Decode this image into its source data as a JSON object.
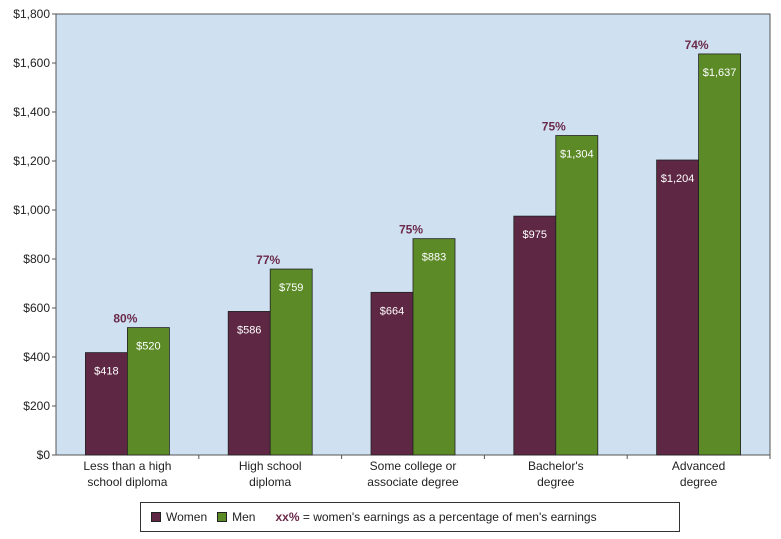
{
  "chart_data": {
    "type": "bar",
    "categories": [
      [
        "Less than a high",
        "school diploma"
      ],
      [
        "High school",
        "diploma"
      ],
      [
        "Some college or",
        "associate degree"
      ],
      [
        "Bachelor's",
        "degree"
      ],
      [
        "Advanced",
        "degree"
      ]
    ],
    "series": [
      {
        "name": "Women",
        "color": "#5e2744",
        "values": [
          418,
          586,
          664,
          975,
          1204
        ],
        "labels": [
          "$418",
          "$586",
          "$664",
          "$975",
          "$1,204"
        ]
      },
      {
        "name": "Men",
        "color": "#5b8a27",
        "values": [
          520,
          759,
          883,
          1304,
          1637
        ],
        "labels": [
          "$520",
          "$759",
          "$883",
          "$1,304",
          "$1,637"
        ]
      }
    ],
    "percent_labels": [
      "80%",
      "77%",
      "75%",
      "75%",
      "74%"
    ],
    "ylim": [
      0,
      1800
    ],
    "yticks": [
      0,
      200,
      400,
      600,
      800,
      1000,
      1200,
      1400,
      1600,
      1800
    ],
    "ytick_labels": [
      "$0",
      "$200",
      "$400",
      "$600",
      "$800",
      "$1,000",
      "$1,200",
      "$1,400",
      "$1,600",
      "$1,800"
    ],
    "plot_background": "#cfe1f1",
    "legend_position": "bottom"
  },
  "legend": {
    "women": "Women",
    "men": "Men",
    "note_key": "xx%",
    "note_text": " = women's earnings as a percentage of men's earnings"
  }
}
